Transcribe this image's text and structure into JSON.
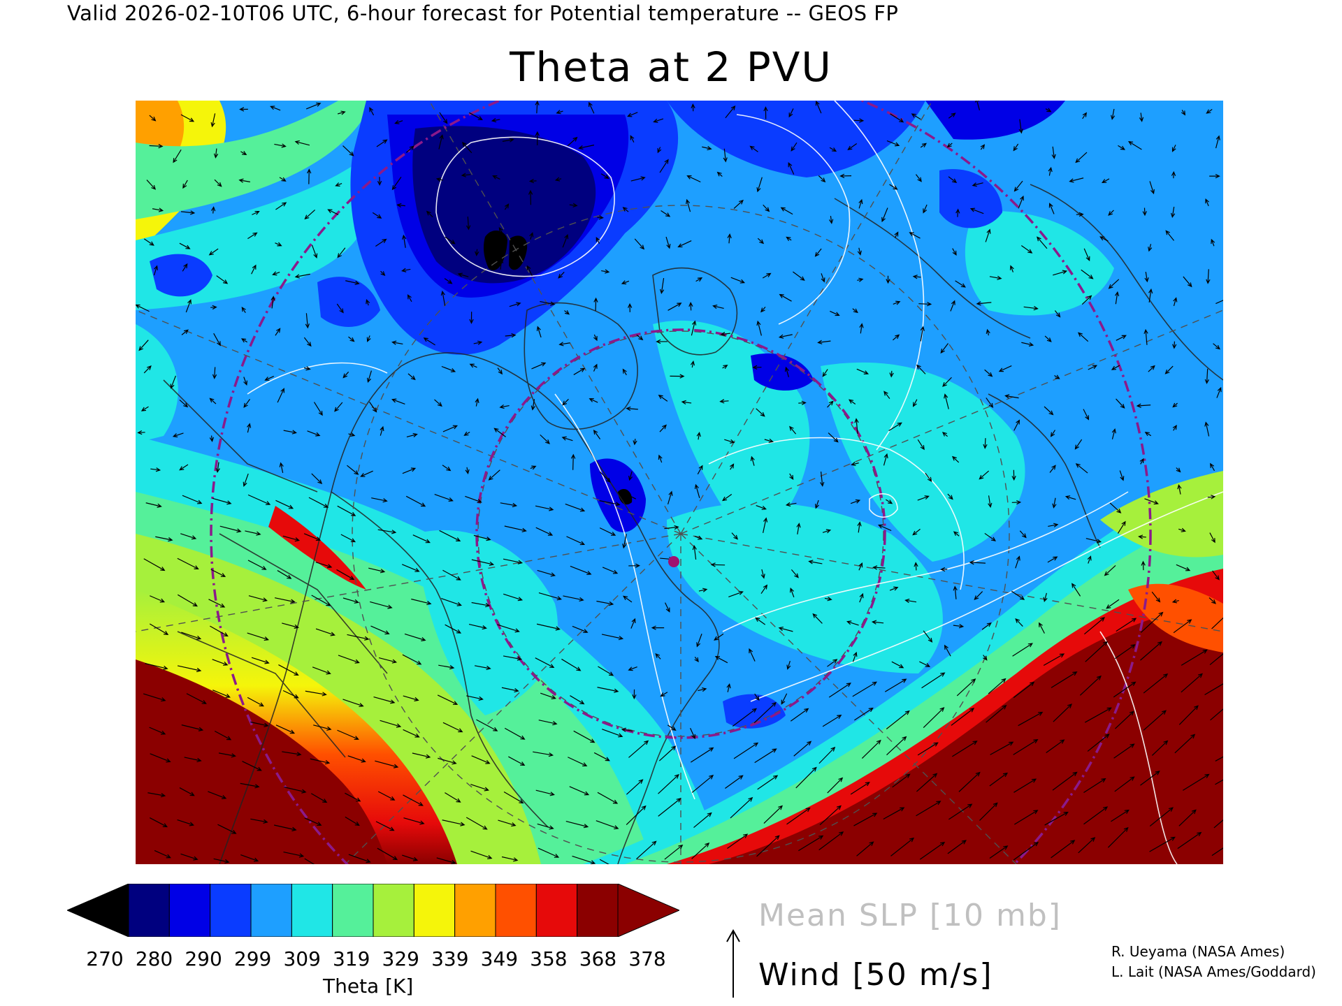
{
  "header": {
    "valid_line": "Valid 2026-02-10T06 UTC, 6-hour forecast for Potential temperature -- GEOS FP",
    "title": "Theta at 2 PVU"
  },
  "map": {
    "field": "Theta at 2 PVU",
    "projection": "north-polar-stereographic",
    "background_color": "#1e9fff",
    "overlays": [
      "theta-shading",
      "mean-slp-contours",
      "wind-vectors",
      "coastlines",
      "political-boundaries",
      "lat-lon-grid",
      "circle-markers"
    ],
    "slp_contour_color": "#ffffff",
    "grid_color": "#505050",
    "circle_color": "#8b1a8b",
    "marker_color": "#a01070"
  },
  "colorbar": {
    "tick_labels": [
      "270",
      "280",
      "290",
      "299",
      "309",
      "319",
      "329",
      "339",
      "349",
      "358",
      "368",
      "378"
    ],
    "label": "Theta [K]",
    "low_extend_color": "#000000",
    "high_extend_color": "#8b0000",
    "colors": [
      "#00007f",
      "#0000e6",
      "#0a3cff",
      "#1e9fff",
      "#20e6e6",
      "#55f09a",
      "#a6f03c",
      "#f5f50a",
      "#ffa000",
      "#ff5000",
      "#e60a0a",
      "#8b0000"
    ]
  },
  "legend": {
    "slp": "Mean SLP [10 mb]",
    "wind": "Wind [50 m/s]"
  },
  "credits": [
    "R. Ueyama (NASA Ames)",
    "L. Lait (NASA Ames/Goddard)"
  ]
}
